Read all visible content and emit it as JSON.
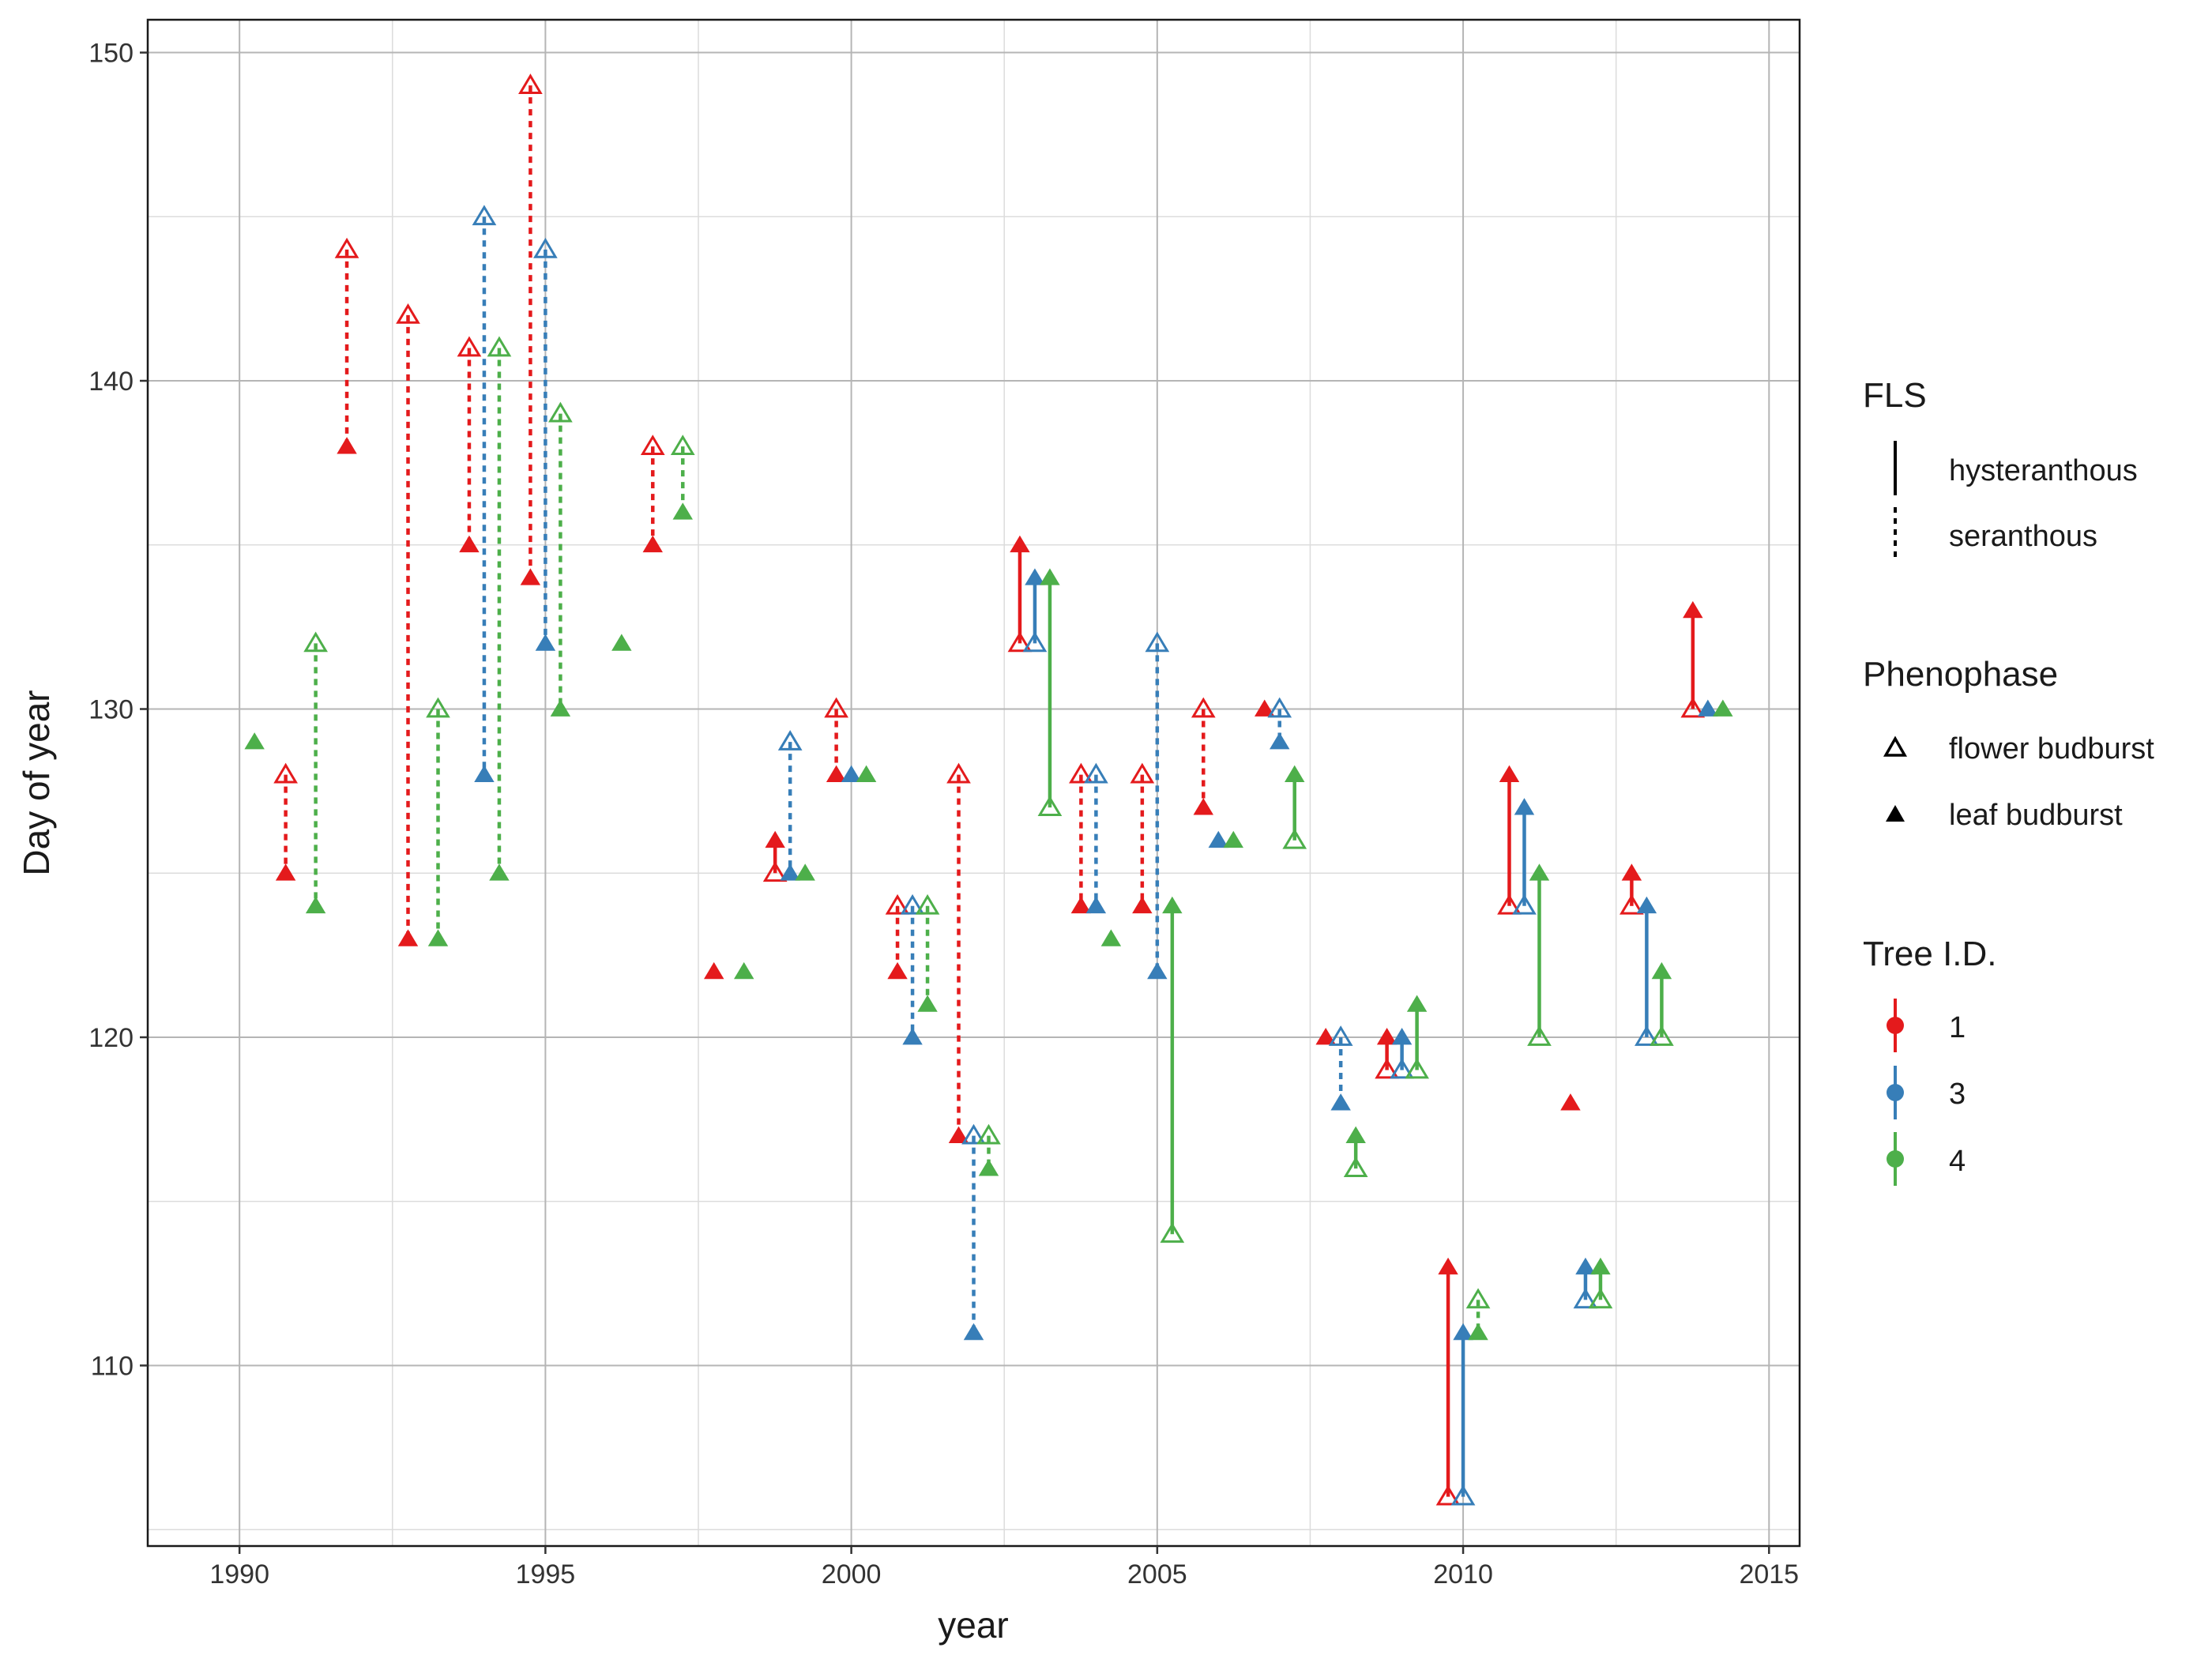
{
  "chart_data": {
    "type": "scatter",
    "xlabel": "year",
    "ylabel": "Day of year",
    "xlim": [
      1988.5,
      2015.5
    ],
    "ylim": [
      104.5,
      151
    ],
    "x_ticks": [
      1990,
      1995,
      2000,
      2005,
      2010,
      2015
    ],
    "y_ticks": [
      110,
      120,
      130,
      140,
      150
    ],
    "grid": true,
    "legend_position": "right",
    "colors": {
      "1": "#E41A1C",
      "3": "#377EB8",
      "4": "#4DAF4A"
    },
    "legend": {
      "fls": {
        "title": "FLS",
        "items": [
          {
            "label": "hysteranthous"
          },
          {
            "label": "seranthous"
          }
        ]
      },
      "phenophase": {
        "title": "Phenophase",
        "items": [
          {
            "label": "flower budburst"
          },
          {
            "label": "leaf budburst"
          }
        ]
      },
      "tree": {
        "title": "Tree I.D.",
        "items": [
          {
            "label": "1"
          },
          {
            "label": "3"
          },
          {
            "label": "4"
          }
        ]
      }
    },
    "series": [
      {
        "tree": "4",
        "year": 1990,
        "flower": null,
        "leaf": 129,
        "fls": null
      },
      {
        "tree": "1",
        "year": 1991,
        "flower": 128,
        "leaf": 125,
        "fls": "seranthous"
      },
      {
        "tree": "4",
        "year": 1991,
        "flower": 132,
        "leaf": 124,
        "fls": "seranthous"
      },
      {
        "tree": "1",
        "year": 1992,
        "flower": 144,
        "leaf": 138,
        "fls": "seranthous"
      },
      {
        "tree": "1",
        "year": 1993,
        "flower": 142,
        "leaf": 123,
        "fls": "seranthous"
      },
      {
        "tree": "4",
        "year": 1993,
        "flower": 130,
        "leaf": 123,
        "fls": "seranthous"
      },
      {
        "tree": "3",
        "year": 1994,
        "flower": 145,
        "leaf": 128,
        "fls": "seranthous"
      },
      {
        "tree": "1",
        "year": 1994,
        "flower": 141,
        "leaf": 135,
        "fls": "seranthous"
      },
      {
        "tree": "4",
        "year": 1994,
        "flower": 141,
        "leaf": 125,
        "fls": "seranthous"
      },
      {
        "tree": "3",
        "year": 1995,
        "flower": 144,
        "leaf": 132,
        "fls": "seranthous"
      },
      {
        "tree": "4",
        "year": 1995,
        "flower": 139,
        "leaf": 130,
        "fls": "seranthous"
      },
      {
        "tree": "1",
        "year": 1995,
        "flower": 149,
        "leaf": 134,
        "fls": "seranthous"
      },
      {
        "tree": "4",
        "year": 1996,
        "flower": null,
        "leaf": 132,
        "fls": null
      },
      {
        "tree": "4",
        "year": 1997,
        "flower": 138,
        "leaf": 136,
        "fls": "seranthous"
      },
      {
        "tree": "1",
        "year": 1997,
        "flower": 138,
        "leaf": 135,
        "fls": "seranthous"
      },
      {
        "tree": "4",
        "year": 1998,
        "flower": null,
        "leaf": 122,
        "fls": null
      },
      {
        "tree": "1",
        "year": 1998,
        "flower": null,
        "leaf": 122,
        "fls": null
      },
      {
        "tree": "1",
        "year": 1999,
        "flower": 125,
        "leaf": 126,
        "fls": "hysteranthous"
      },
      {
        "tree": "3",
        "year": 1999,
        "flower": 129,
        "leaf": 125,
        "fls": "seranthous"
      },
      {
        "tree": "4",
        "year": 1999,
        "flower": null,
        "leaf": 125,
        "fls": null
      },
      {
        "tree": "1",
        "year": 2000,
        "flower": 130,
        "leaf": 128,
        "fls": "seranthous"
      },
      {
        "tree": "3",
        "year": 2000,
        "flower": null,
        "leaf": 128,
        "fls": null
      },
      {
        "tree": "4",
        "year": 2000,
        "flower": null,
        "leaf": 128,
        "fls": null
      },
      {
        "tree": "1",
        "year": 2001,
        "flower": 124,
        "leaf": 122,
        "fls": "seranthous"
      },
      {
        "tree": "3",
        "year": 2001,
        "flower": 124,
        "leaf": 120,
        "fls": "seranthous"
      },
      {
        "tree": "4",
        "year": 2001,
        "flower": 124,
        "leaf": 121,
        "fls": "seranthous"
      },
      {
        "tree": "1",
        "year": 2002,
        "flower": 128,
        "leaf": 117,
        "fls": "seranthous"
      },
      {
        "tree": "3",
        "year": 2002,
        "flower": 117,
        "leaf": 111,
        "fls": "seranthous"
      },
      {
        "tree": "4",
        "year": 2002,
        "flower": 117,
        "leaf": 116,
        "fls": "seranthous"
      },
      {
        "tree": "1",
        "year": 2003,
        "flower": 132,
        "leaf": 135,
        "fls": "hysteranthous"
      },
      {
        "tree": "3",
        "year": 2003,
        "flower": 132,
        "leaf": 134,
        "fls": "hysteranthous"
      },
      {
        "tree": "4",
        "year": 2003,
        "flower": 127,
        "leaf": 134,
        "fls": "hysteranthous"
      },
      {
        "tree": "1",
        "year": 2004,
        "flower": 128,
        "leaf": 124,
        "fls": "seranthous"
      },
      {
        "tree": "3",
        "year": 2004,
        "flower": 128,
        "leaf": 124,
        "fls": "seranthous"
      },
      {
        "tree": "4",
        "year": 2004,
        "flower": null,
        "leaf": 123,
        "fls": null
      },
      {
        "tree": "1",
        "year": 2005,
        "flower": 128,
        "leaf": 124,
        "fls": "seranthous"
      },
      {
        "tree": "3",
        "year": 2005,
        "flower": 132,
        "leaf": 122,
        "fls": "seranthous"
      },
      {
        "tree": "4",
        "year": 2005,
        "flower": 114,
        "leaf": 124,
        "fls": "hysteranthous"
      },
      {
        "tree": "1",
        "year": 2006,
        "flower": 130,
        "leaf": 127,
        "fls": "seranthous"
      },
      {
        "tree": "3",
        "year": 2006,
        "flower": null,
        "leaf": 126,
        "fls": null
      },
      {
        "tree": "4",
        "year": 2006,
        "flower": null,
        "leaf": 126,
        "fls": null
      },
      {
        "tree": "1",
        "year": 2007,
        "flower": null,
        "leaf": 130,
        "fls": null
      },
      {
        "tree": "3",
        "year": 2007,
        "flower": 130,
        "leaf": 129,
        "fls": "seranthous"
      },
      {
        "tree": "4",
        "year": 2007,
        "flower": 126,
        "leaf": 128,
        "fls": "hysteranthous"
      },
      {
        "tree": "1",
        "year": 2008,
        "flower": null,
        "leaf": 120,
        "fls": null
      },
      {
        "tree": "3",
        "year": 2008,
        "flower": 120,
        "leaf": 118,
        "fls": "seranthous"
      },
      {
        "tree": "4",
        "year": 2008,
        "flower": 116,
        "leaf": 117,
        "fls": "hysteranthous"
      },
      {
        "tree": "1",
        "year": 2009,
        "flower": 119,
        "leaf": 120,
        "fls": "hysteranthous"
      },
      {
        "tree": "3",
        "year": 2009,
        "flower": 119,
        "leaf": 120,
        "fls": "hysteranthous"
      },
      {
        "tree": "4",
        "year": 2009,
        "flower": 119,
        "leaf": 121,
        "fls": "hysteranthous"
      },
      {
        "tree": "1",
        "year": 2010,
        "flower": 106,
        "leaf": 113,
        "fls": "hysteranthous"
      },
      {
        "tree": "3",
        "year": 2010,
        "flower": 106,
        "leaf": 111,
        "fls": "hysteranthous"
      },
      {
        "tree": "4",
        "year": 2010,
        "flower": 112,
        "leaf": 111,
        "fls": "seranthous"
      },
      {
        "tree": "1",
        "year": 2011,
        "flower": 124,
        "leaf": 128,
        "fls": "hysteranthous"
      },
      {
        "tree": "3",
        "year": 2011,
        "flower": 124,
        "leaf": 127,
        "fls": "hysteranthous"
      },
      {
        "tree": "4",
        "year": 2011,
        "flower": 120,
        "leaf": 125,
        "fls": "hysteranthous"
      },
      {
        "tree": "1",
        "year": 2012,
        "flower": null,
        "leaf": 118,
        "fls": null
      },
      {
        "tree": "3",
        "year": 2012,
        "flower": 112,
        "leaf": 113,
        "fls": "hysteranthous"
      },
      {
        "tree": "4",
        "year": 2012,
        "flower": 112,
        "leaf": 113,
        "fls": "hysteranthous"
      },
      {
        "tree": "1",
        "year": 2013,
        "flower": 124,
        "leaf": 125,
        "fls": "hysteranthous"
      },
      {
        "tree": "3",
        "year": 2013,
        "flower": 120,
        "leaf": 124,
        "fls": "hysteranthous"
      },
      {
        "tree": "4",
        "year": 2013,
        "flower": 120,
        "leaf": 122,
        "fls": "hysteranthous"
      },
      {
        "tree": "1",
        "year": 2014,
        "flower": 130,
        "leaf": 133,
        "fls": "hysteranthous"
      },
      {
        "tree": "3",
        "year": 2014,
        "flower": null,
        "leaf": 130,
        "fls": null
      },
      {
        "tree": "4",
        "year": 2014,
        "flower": null,
        "leaf": 130,
        "fls": null
      }
    ]
  }
}
